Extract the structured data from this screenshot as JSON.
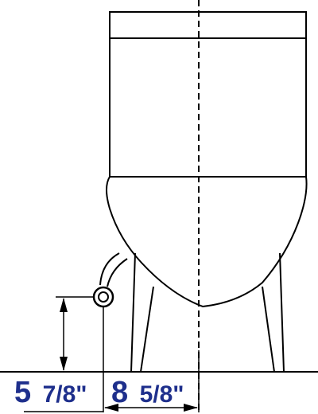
{
  "dimensions": {
    "height": {
      "whole": "5",
      "fraction": "7/8\""
    },
    "offset": {
      "whole": "8",
      "fraction": "5/8\""
    }
  },
  "colors": {
    "line": "#000000",
    "label": "#1e2f8c",
    "background": "#ffffff"
  },
  "parts": {
    "tank": "toilet-tank",
    "bowl": "toilet-bowl",
    "supply": "water-supply-valve",
    "centerline": "centerline"
  }
}
